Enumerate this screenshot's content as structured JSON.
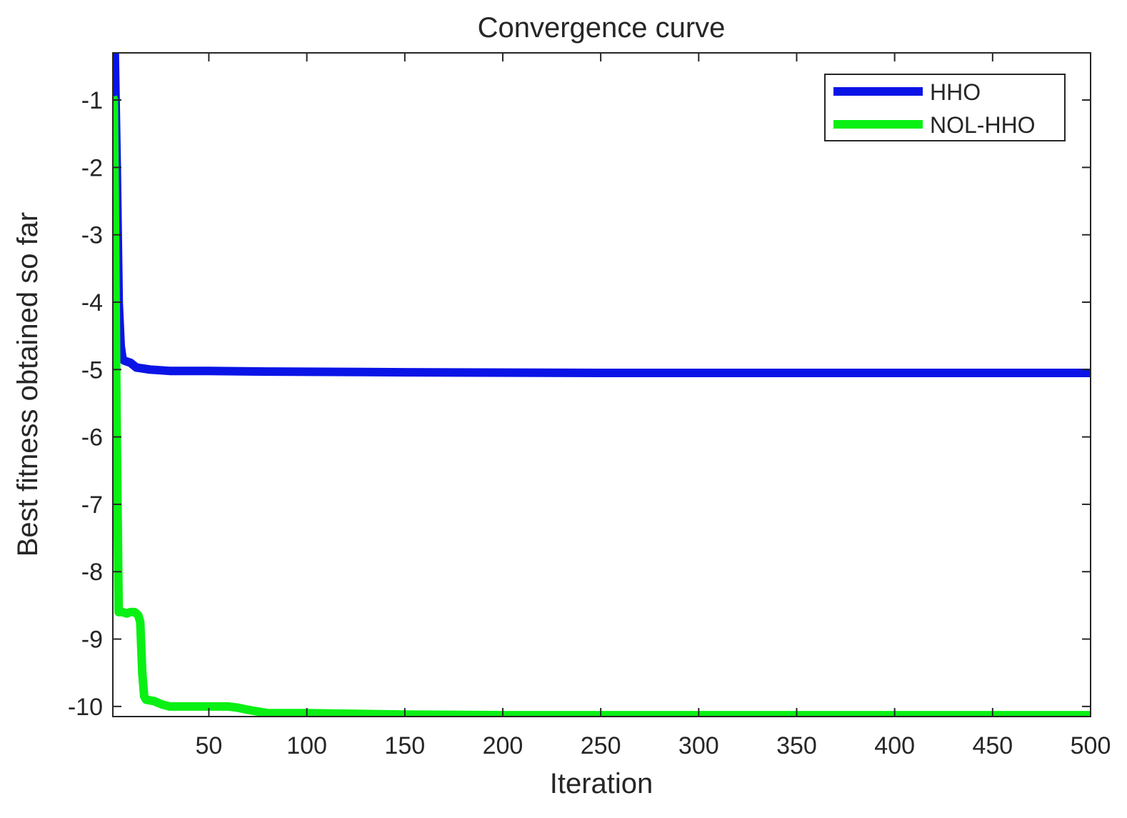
{
  "chart_data": {
    "type": "line",
    "title": "Convergence curve",
    "xlabel": "Iteration",
    "ylabel": "Best fitness obtained so far",
    "xlim": [
      1,
      500
    ],
    "ylim": [
      -10.15,
      -0.3
    ],
    "xticks": [
      50,
      100,
      150,
      200,
      250,
      300,
      350,
      400,
      450,
      500
    ],
    "yticks": [
      -1,
      -2,
      -3,
      -4,
      -5,
      -6,
      -7,
      -8,
      -9,
      -10
    ],
    "grid": false,
    "legend_position": "top-right",
    "series": [
      {
        "name": "HHO",
        "color": "#0a14e6",
        "x": [
          1,
          2,
          3,
          4,
          5,
          6,
          7,
          10,
          13,
          20,
          30,
          50,
          80,
          150,
          250,
          350,
          500
        ],
        "y": [
          -0.3,
          -0.3,
          -2.0,
          -4.0,
          -4.65,
          -4.85,
          -4.87,
          -4.9,
          -4.97,
          -5.0,
          -5.02,
          -5.02,
          -5.03,
          -5.04,
          -5.05,
          -5.05,
          -5.05
        ]
      },
      {
        "name": "NOL-HHO",
        "color": "#0af014",
        "x": [
          1,
          1.5,
          2,
          3,
          4,
          6,
          8,
          10,
          12,
          13,
          14,
          15,
          16,
          17,
          18,
          22,
          26,
          30,
          40,
          60,
          65,
          70,
          80,
          100,
          150,
          200,
          300,
          500
        ],
        "y": [
          -0.95,
          -1.0,
          -2.5,
          -6.0,
          -8.6,
          -8.6,
          -8.62,
          -8.6,
          -8.6,
          -8.62,
          -8.65,
          -8.75,
          -9.5,
          -9.85,
          -9.9,
          -9.92,
          -9.97,
          -10.0,
          -10.0,
          -10.0,
          -10.02,
          -10.05,
          -10.1,
          -10.1,
          -10.12,
          -10.13,
          -10.13,
          -10.13
        ]
      }
    ]
  }
}
